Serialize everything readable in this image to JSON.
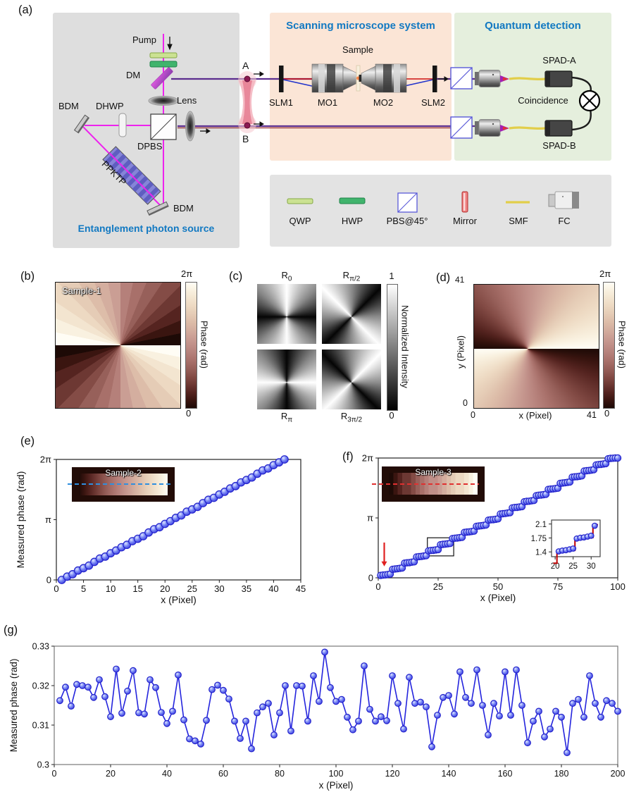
{
  "colors": {
    "title_blue": "#1279c2",
    "beam_magenta": "#ee22ee",
    "beam_purple": "#5b2d8e",
    "beam_red": "#cc1111",
    "beam_blue": "#2233cc",
    "fiber_yellow": "#e2ce4a",
    "marker_stroke": "#2323cc",
    "fit_red": "#c00000",
    "box_gray": "#dedede",
    "box_orange": "#fbe5d6",
    "box_green": "#e5efdd",
    "box_legend": "#e3e3e3",
    "gray_lo": "#000000",
    "gray_hi": "#ffffff",
    "phase_colormap": [
      "#1d0a06",
      "#3a1510",
      "#552420",
      "#6d3833",
      "#844c46",
      "#97605a",
      "#a8706a",
      "#b5807a",
      "#c08f88",
      "#ca9e94",
      "#d4ae9f",
      "#ddbda9",
      "#e5ccb6",
      "#edd9c2",
      "#f3e5d0",
      "#f9f1e0",
      "#fffdf5"
    ]
  },
  "panel_letters": {
    "a": "(a)",
    "b": "(b)",
    "c": "(c)",
    "d": "(d)",
    "e": "(e)",
    "f": "(f)",
    "g": "(g)"
  },
  "panel_a": {
    "source_title": "Entanglement photon source",
    "microscope_title": "Scanning microscope system",
    "detection_title": "Quantum detection",
    "labels": {
      "pump": "Pump",
      "dm": "DM",
      "lens": "Lens",
      "bdm_left": "BDM",
      "dhwp": "DHWP",
      "dpbs": "DPBS",
      "ppktp": "PPKTP",
      "bdm_bottom": "BDM",
      "point_a": "A",
      "point_b": "B",
      "slm1": "SLM1",
      "mo1": "MO1",
      "sample": "Sample",
      "mo2": "MO2",
      "slm2": "SLM2",
      "spad_a": "SPAD-A",
      "spad_b": "SPAD-B",
      "coincidence": "Coincidence"
    },
    "legend_items": [
      {
        "label": "QWP"
      },
      {
        "label": "HWP"
      },
      {
        "label": "PBS@45°"
      },
      {
        "label": "Mirror"
      },
      {
        "label": "SMF"
      },
      {
        "label": "FC"
      }
    ]
  },
  "panel_b": {
    "sample_label": "Sample-1",
    "cbar_max": "2π",
    "cbar_min": "0",
    "cbar_title": "Phase (rad)"
  },
  "panel_c": {
    "labels": [
      {
        "base": "R",
        "sub": "0"
      },
      {
        "base": "R",
        "sub": "π/2"
      },
      {
        "base": "R",
        "sub": "π"
      },
      {
        "base": "R",
        "sub": "3π/2"
      }
    ],
    "cbar_max": "1",
    "cbar_min": "0",
    "cbar_title": "Normalized Intensity"
  },
  "panel_d": {
    "ytick_max": "41",
    "ytick_min": "0",
    "xtick_min": "0",
    "xtick_max": "41",
    "xlabel": "x (Pixel)",
    "ylabel": "y (Pixel)",
    "cbar_max": "2π",
    "cbar_min": "0",
    "cbar_title": "Phase (rad)"
  },
  "chart_data": {
    "e": {
      "type": "scatter",
      "xlabel": "x (Pixel)",
      "ylabel": "Measured phase (rad)",
      "xlim": [
        0,
        45
      ],
      "ylim": [
        0,
        6.2832
      ],
      "xticks": [
        0,
        5,
        10,
        15,
        20,
        25,
        30,
        35,
        40,
        45
      ],
      "yticks": [
        {
          "v": 0,
          "label": "0"
        },
        {
          "v": 3.1416,
          "label": "π"
        },
        {
          "v": 6.2832,
          "label": "2π"
        }
      ],
      "inset_label": "Sample-2",
      "fit_line": {
        "x0": 1,
        "y0": 0,
        "x1": 42,
        "y1": 6.2832
      },
      "x": [
        1,
        2,
        3,
        4,
        5,
        6,
        7,
        8,
        9,
        10,
        11,
        12,
        13,
        14,
        15,
        16,
        17,
        18,
        19,
        20,
        21,
        22,
        23,
        24,
        25,
        26,
        27,
        28,
        29,
        30,
        31,
        32,
        33,
        34,
        35,
        36,
        37,
        38,
        39,
        40,
        41,
        42
      ],
      "y": [
        0.0,
        0.173,
        0.297,
        0.49,
        0.613,
        0.746,
        0.94,
        1.113,
        1.216,
        1.389,
        1.533,
        1.706,
        1.829,
        2.022,
        2.146,
        2.279,
        2.472,
        2.645,
        2.749,
        2.922,
        3.065,
        3.238,
        3.362,
        3.555,
        3.678,
        3.811,
        4.005,
        4.178,
        4.281,
        4.454,
        4.598,
        4.771,
        4.894,
        5.087,
        5.211,
        5.344,
        5.537,
        5.71,
        5.814,
        5.987,
        6.13,
        6.283
      ]
    },
    "f": {
      "type": "scatter",
      "xlabel": "x (Pixel)",
      "xlim": [
        0,
        100
      ],
      "ylim": [
        0,
        6.2832
      ],
      "xticks": [
        0,
        25,
        50,
        75,
        100
      ],
      "yticks": [
        {
          "v": 0,
          "label": "0"
        },
        {
          "v": 3.1416,
          "label": "π"
        },
        {
          "v": 6.2832,
          "label": "2π"
        }
      ],
      "inset_label": "Sample-3",
      "fit_steps": {
        "n": 20,
        "x_start": 0.5,
        "dx": 5,
        "y_start": 0.15,
        "dy": 0.322
      },
      "arrow": {
        "x": 2.5,
        "y_from": 1.85,
        "y_to": 0.6
      },
      "zoom_rect": {
        "x0": 20.5,
        "x1": 31.5,
        "y0": 1.15,
        "y1": 2.1
      },
      "x": [
        1,
        2,
        3,
        4,
        5,
        6,
        7,
        8,
        9,
        10,
        11,
        12,
        13,
        14,
        15,
        16,
        17,
        18,
        19,
        20,
        21,
        22,
        23,
        24,
        25,
        26,
        27,
        28,
        29,
        30,
        31,
        32,
        33,
        34,
        35,
        36,
        37,
        38,
        39,
        40,
        41,
        42,
        43,
        44,
        45,
        46,
        47,
        48,
        49,
        50,
        51,
        52,
        53,
        54,
        55,
        56,
        57,
        58,
        59,
        60,
        61,
        62,
        63,
        64,
        65,
        66,
        67,
        68,
        69,
        70,
        71,
        72,
        73,
        74,
        75,
        76,
        77,
        78,
        79,
        80,
        81,
        82,
        83,
        84,
        85,
        86,
        87,
        88,
        89,
        90,
        91,
        92,
        93,
        94,
        95,
        96,
        97,
        98,
        99,
        100
      ],
      "y": [
        0.125,
        0.145,
        0.155,
        0.175,
        0.195,
        0.447,
        0.467,
        0.477,
        0.497,
        0.517,
        0.769,
        0.789,
        0.799,
        0.819,
        0.839,
        1.091,
        1.111,
        1.121,
        1.141,
        1.161,
        1.413,
        1.433,
        1.443,
        1.463,
        1.483,
        1.735,
        1.755,
        1.765,
        1.785,
        1.805,
        2.057,
        2.077,
        2.087,
        2.107,
        2.127,
        2.379,
        2.399,
        2.409,
        2.429,
        2.449,
        2.701,
        2.721,
        2.731,
        2.751,
        2.771,
        3.023,
        3.043,
        3.053,
        3.073,
        3.093,
        3.345,
        3.365,
        3.375,
        3.395,
        3.415,
        3.667,
        3.687,
        3.697,
        3.717,
        3.737,
        3.989,
        4.009,
        4.019,
        4.039,
        4.059,
        4.311,
        4.331,
        4.341,
        4.361,
        4.381,
        4.633,
        4.653,
        4.663,
        4.683,
        4.703,
        4.955,
        4.975,
        4.985,
        5.005,
        5.025,
        5.277,
        5.297,
        5.307,
        5.327,
        5.347,
        5.599,
        5.619,
        5.629,
        5.649,
        5.669,
        5.921,
        5.941,
        5.951,
        5.971,
        5.991,
        6.243,
        6.263,
        6.273,
        6.283,
        6.283
      ]
    },
    "f_inset": {
      "type": "scatter",
      "xlim": [
        19,
        32.5
      ],
      "ylim": [
        1.28,
        2.2
      ],
      "xticks": [
        20,
        25,
        30
      ],
      "yticks": [
        {
          "v": 1.4,
          "label": "1.4"
        },
        {
          "v": 1.75,
          "label": "1.75"
        },
        {
          "v": 2.1,
          "label": "2.1"
        }
      ],
      "fit_path": [
        [
          19.5,
          1.116
        ],
        [
          20.5,
          1.116
        ],
        [
          20.5,
          1.438
        ],
        [
          25.5,
          1.438
        ],
        [
          25.5,
          1.76
        ],
        [
          30.5,
          1.76
        ],
        [
          30.5,
          2.082
        ],
        [
          31.9,
          2.082
        ]
      ],
      "x": [
        21,
        22,
        23,
        24,
        25,
        26,
        27,
        28,
        29,
        30,
        31
      ],
      "y": [
        1.413,
        1.433,
        1.443,
        1.463,
        1.483,
        1.735,
        1.755,
        1.765,
        1.785,
        1.805,
        2.057
      ]
    },
    "g": {
      "type": "scatter",
      "connect": true,
      "xlabel": "x (Pixel)",
      "ylabel": "Measured phase (rad)",
      "xlim": [
        0,
        200
      ],
      "ylim": [
        0.3,
        0.33
      ],
      "xticks": [
        0,
        20,
        40,
        60,
        80,
        100,
        120,
        140,
        160,
        180,
        200
      ],
      "yticks": [
        {
          "v": 0.3,
          "label": "0.3"
        },
        {
          "v": 0.31,
          "label": "0.31"
        },
        {
          "v": 0.32,
          "label": "0.32"
        },
        {
          "v": 0.33,
          "label": "0.33"
        }
      ],
      "x": [
        2,
        4,
        6,
        8,
        10,
        12,
        14,
        16,
        18,
        20,
        22,
        24,
        26,
        28,
        30,
        32,
        34,
        36,
        38,
        40,
        42,
        44,
        46,
        48,
        50,
        52,
        54,
        56,
        58,
        60,
        62,
        64,
        66,
        68,
        70,
        72,
        74,
        76,
        78,
        80,
        82,
        84,
        86,
        88,
        90,
        92,
        94,
        96,
        98,
        100,
        102,
        104,
        106,
        108,
        110,
        112,
        114,
        116,
        118,
        120,
        122,
        124,
        126,
        128,
        130,
        132,
        134,
        136,
        138,
        140,
        142,
        144,
        146,
        148,
        150,
        152,
        154,
        156,
        158,
        160,
        162,
        164,
        166,
        168,
        170,
        172,
        174,
        176,
        178,
        180,
        182,
        184,
        186,
        188,
        190,
        192,
        194,
        196,
        198,
        200
      ],
      "y": [
        0.3162,
        0.3196,
        0.3148,
        0.3203,
        0.32,
        0.3196,
        0.317,
        0.3215,
        0.3172,
        0.3121,
        0.3242,
        0.313,
        0.3186,
        0.3238,
        0.3131,
        0.3128,
        0.3215,
        0.3195,
        0.3132,
        0.3104,
        0.3135,
        0.3227,
        0.3113,
        0.3065,
        0.306,
        0.3052,
        0.3112,
        0.319,
        0.3201,
        0.3188,
        0.3166,
        0.311,
        0.3066,
        0.311,
        0.304,
        0.3131,
        0.3146,
        0.3155,
        0.3075,
        0.3131,
        0.32,
        0.3085,
        0.32,
        0.3199,
        0.311,
        0.3225,
        0.316,
        0.3285,
        0.3195,
        0.316,
        0.3165,
        0.312,
        0.3088,
        0.311,
        0.325,
        0.314,
        0.311,
        0.3121,
        0.3111,
        0.3225,
        0.3155,
        0.309,
        0.3221,
        0.3155,
        0.3158,
        0.3146,
        0.3045,
        0.3125,
        0.317,
        0.3175,
        0.3128,
        0.3235,
        0.317,
        0.3155,
        0.324,
        0.315,
        0.3075,
        0.3155,
        0.3123,
        0.3235,
        0.3125,
        0.324,
        0.315,
        0.3055,
        0.311,
        0.3135,
        0.307,
        0.309,
        0.3135,
        0.312,
        0.303,
        0.3155,
        0.3165,
        0.312,
        0.3225,
        0.3155,
        0.312,
        0.3162,
        0.3155,
        0.3135
      ]
    }
  }
}
